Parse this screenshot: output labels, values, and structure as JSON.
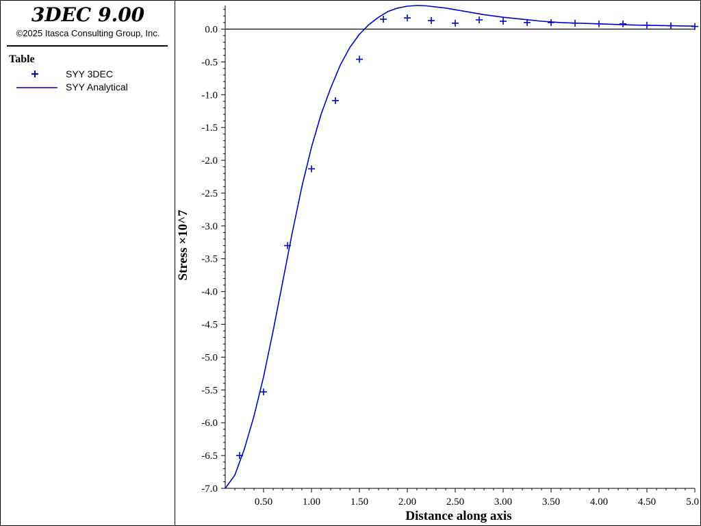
{
  "app": {
    "title": "3DEC 9.00",
    "copyright": "©2025 Itasca Consulting Group, Inc."
  },
  "legend": {
    "title": "Table",
    "items": [
      {
        "label": "SYY 3DEC",
        "symbol": "plus"
      },
      {
        "label": "SYY Analytical",
        "symbol": "line"
      }
    ]
  },
  "colors": {
    "series": "#0000cc",
    "axis": "#000000"
  },
  "chart_data": {
    "type": "line",
    "title": "",
    "xlabel": "Distance along axis",
    "ylabel": "Stress ×10^7",
    "xlim": [
      0.1,
      5.0
    ],
    "ylim": [
      -7.0,
      0.36
    ],
    "x_ticks": [
      "0.50",
      "1.00",
      "1.50",
      "2.00",
      "2.50",
      "3.00",
      "3.50",
      "4.00",
      "4.50",
      "5.0"
    ],
    "x_tick_values": [
      0.5,
      1.0,
      1.5,
      2.0,
      2.5,
      3.0,
      3.5,
      4.0,
      4.5,
      5.0
    ],
    "y_ticks": [
      "0.0",
      "-0.5",
      "-1.0",
      "-1.5",
      "-2.0",
      "-2.5",
      "-3.0",
      "-3.5",
      "-4.0",
      "-4.5",
      "-5.0",
      "-5.5",
      "-6.0",
      "-6.5",
      "-7.0"
    ],
    "y_tick_values": [
      0.0,
      -0.5,
      -1.0,
      -1.5,
      -2.0,
      -2.5,
      -3.0,
      -3.5,
      -4.0,
      -4.5,
      -5.0,
      -5.5,
      -6.0,
      -6.5,
      -7.0
    ],
    "zero_line": true,
    "grid": false,
    "series": [
      {
        "name": "SYY 3DEC",
        "marker": "plus",
        "x": [
          0.25,
          0.5,
          0.75,
          1.0,
          1.25,
          1.5,
          1.75,
          2.0,
          2.25,
          2.5,
          2.75,
          3.0,
          3.25,
          3.5,
          3.75,
          4.0,
          4.25,
          4.5,
          4.75,
          5.0
        ],
        "y": [
          -6.5,
          -5.53,
          -3.3,
          -2.13,
          -1.09,
          -0.46,
          0.15,
          0.17,
          0.13,
          0.09,
          0.14,
          0.12,
          0.1,
          0.1,
          0.09,
          0.08,
          0.08,
          0.06,
          0.05,
          0.04
        ]
      },
      {
        "name": "SYY Analytical",
        "marker": "line",
        "x": [
          0.1,
          0.2,
          0.3,
          0.4,
          0.5,
          0.6,
          0.7,
          0.8,
          0.9,
          1.0,
          1.1,
          1.2,
          1.3,
          1.4,
          1.5,
          1.6,
          1.7,
          1.8,
          1.9,
          2.0,
          2.1,
          2.2,
          2.4,
          2.6,
          2.8,
          3.0,
          3.2,
          3.4,
          3.6,
          3.8,
          4.0,
          4.2,
          4.4,
          4.6,
          4.8,
          5.0
        ],
        "y": [
          -7.0,
          -6.8,
          -6.4,
          -5.9,
          -5.3,
          -4.6,
          -3.85,
          -3.1,
          -2.4,
          -1.8,
          -1.3,
          -0.9,
          -0.55,
          -0.28,
          -0.08,
          0.07,
          0.18,
          0.27,
          0.32,
          0.35,
          0.36,
          0.355,
          0.32,
          0.27,
          0.22,
          0.18,
          0.15,
          0.12,
          0.1,
          0.09,
          0.08,
          0.07,
          0.06,
          0.055,
          0.05,
          0.045
        ]
      }
    ]
  }
}
